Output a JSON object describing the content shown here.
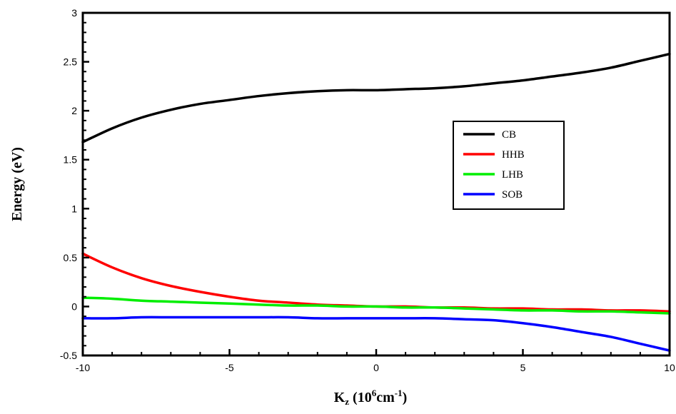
{
  "chart_data": {
    "type": "line",
    "xlabel": {
      "base": "K",
      "sub": "z",
      "open": " (10",
      "sup1": "6",
      "mid": "cm",
      "sup2": "-1",
      "close": ")"
    },
    "ylabel": "Energy (eV)",
    "xlim": [
      -10,
      10
    ],
    "ylim": [
      -0.5,
      3
    ],
    "xticks": [
      -10,
      -5,
      0,
      5,
      10
    ],
    "yticks": [
      -0.5,
      0,
      0.5,
      1,
      1.5,
      2,
      2.5,
      3
    ],
    "ytick_labels": [
      "-0.5",
      "0",
      "0.5",
      "1",
      "1.5",
      "2",
      "2.5",
      "3"
    ],
    "grid": false,
    "legend_position": "center-right",
    "x": [
      -10,
      -9,
      -8,
      -7,
      -6,
      -5,
      -4,
      -3,
      -2,
      -1,
      0,
      1,
      2,
      3,
      4,
      5,
      6,
      7,
      8,
      9,
      10
    ],
    "series": [
      {
        "name": "CB",
        "color": "#000000",
        "values": [
          1.68,
          1.82,
          1.93,
          2.01,
          2.07,
          2.11,
          2.15,
          2.18,
          2.2,
          2.21,
          2.21,
          2.22,
          2.23,
          2.25,
          2.28,
          2.31,
          2.35,
          2.39,
          2.44,
          2.51,
          2.58
        ]
      },
      {
        "name": "HHB",
        "color": "#ff0000",
        "values": [
          0.54,
          0.4,
          0.29,
          0.21,
          0.15,
          0.1,
          0.06,
          0.04,
          0.02,
          0.01,
          0.0,
          0.0,
          -0.01,
          -0.01,
          -0.02,
          -0.02,
          -0.03,
          -0.03,
          -0.04,
          -0.04,
          -0.05
        ]
      },
      {
        "name": "LHB",
        "color": "#00ee00",
        "values": [
          0.09,
          0.08,
          0.06,
          0.05,
          0.04,
          0.03,
          0.02,
          0.01,
          0.01,
          0.0,
          0.0,
          -0.01,
          -0.01,
          -0.02,
          -0.03,
          -0.04,
          -0.04,
          -0.05,
          -0.05,
          -0.06,
          -0.07
        ]
      },
      {
        "name": "SOB",
        "color": "#0000ff",
        "values": [
          -0.12,
          -0.12,
          -0.11,
          -0.11,
          -0.11,
          -0.11,
          -0.11,
          -0.11,
          -0.12,
          -0.12,
          -0.12,
          -0.12,
          -0.12,
          -0.13,
          -0.14,
          -0.17,
          -0.21,
          -0.26,
          -0.31,
          -0.38,
          -0.45
        ]
      }
    ]
  }
}
